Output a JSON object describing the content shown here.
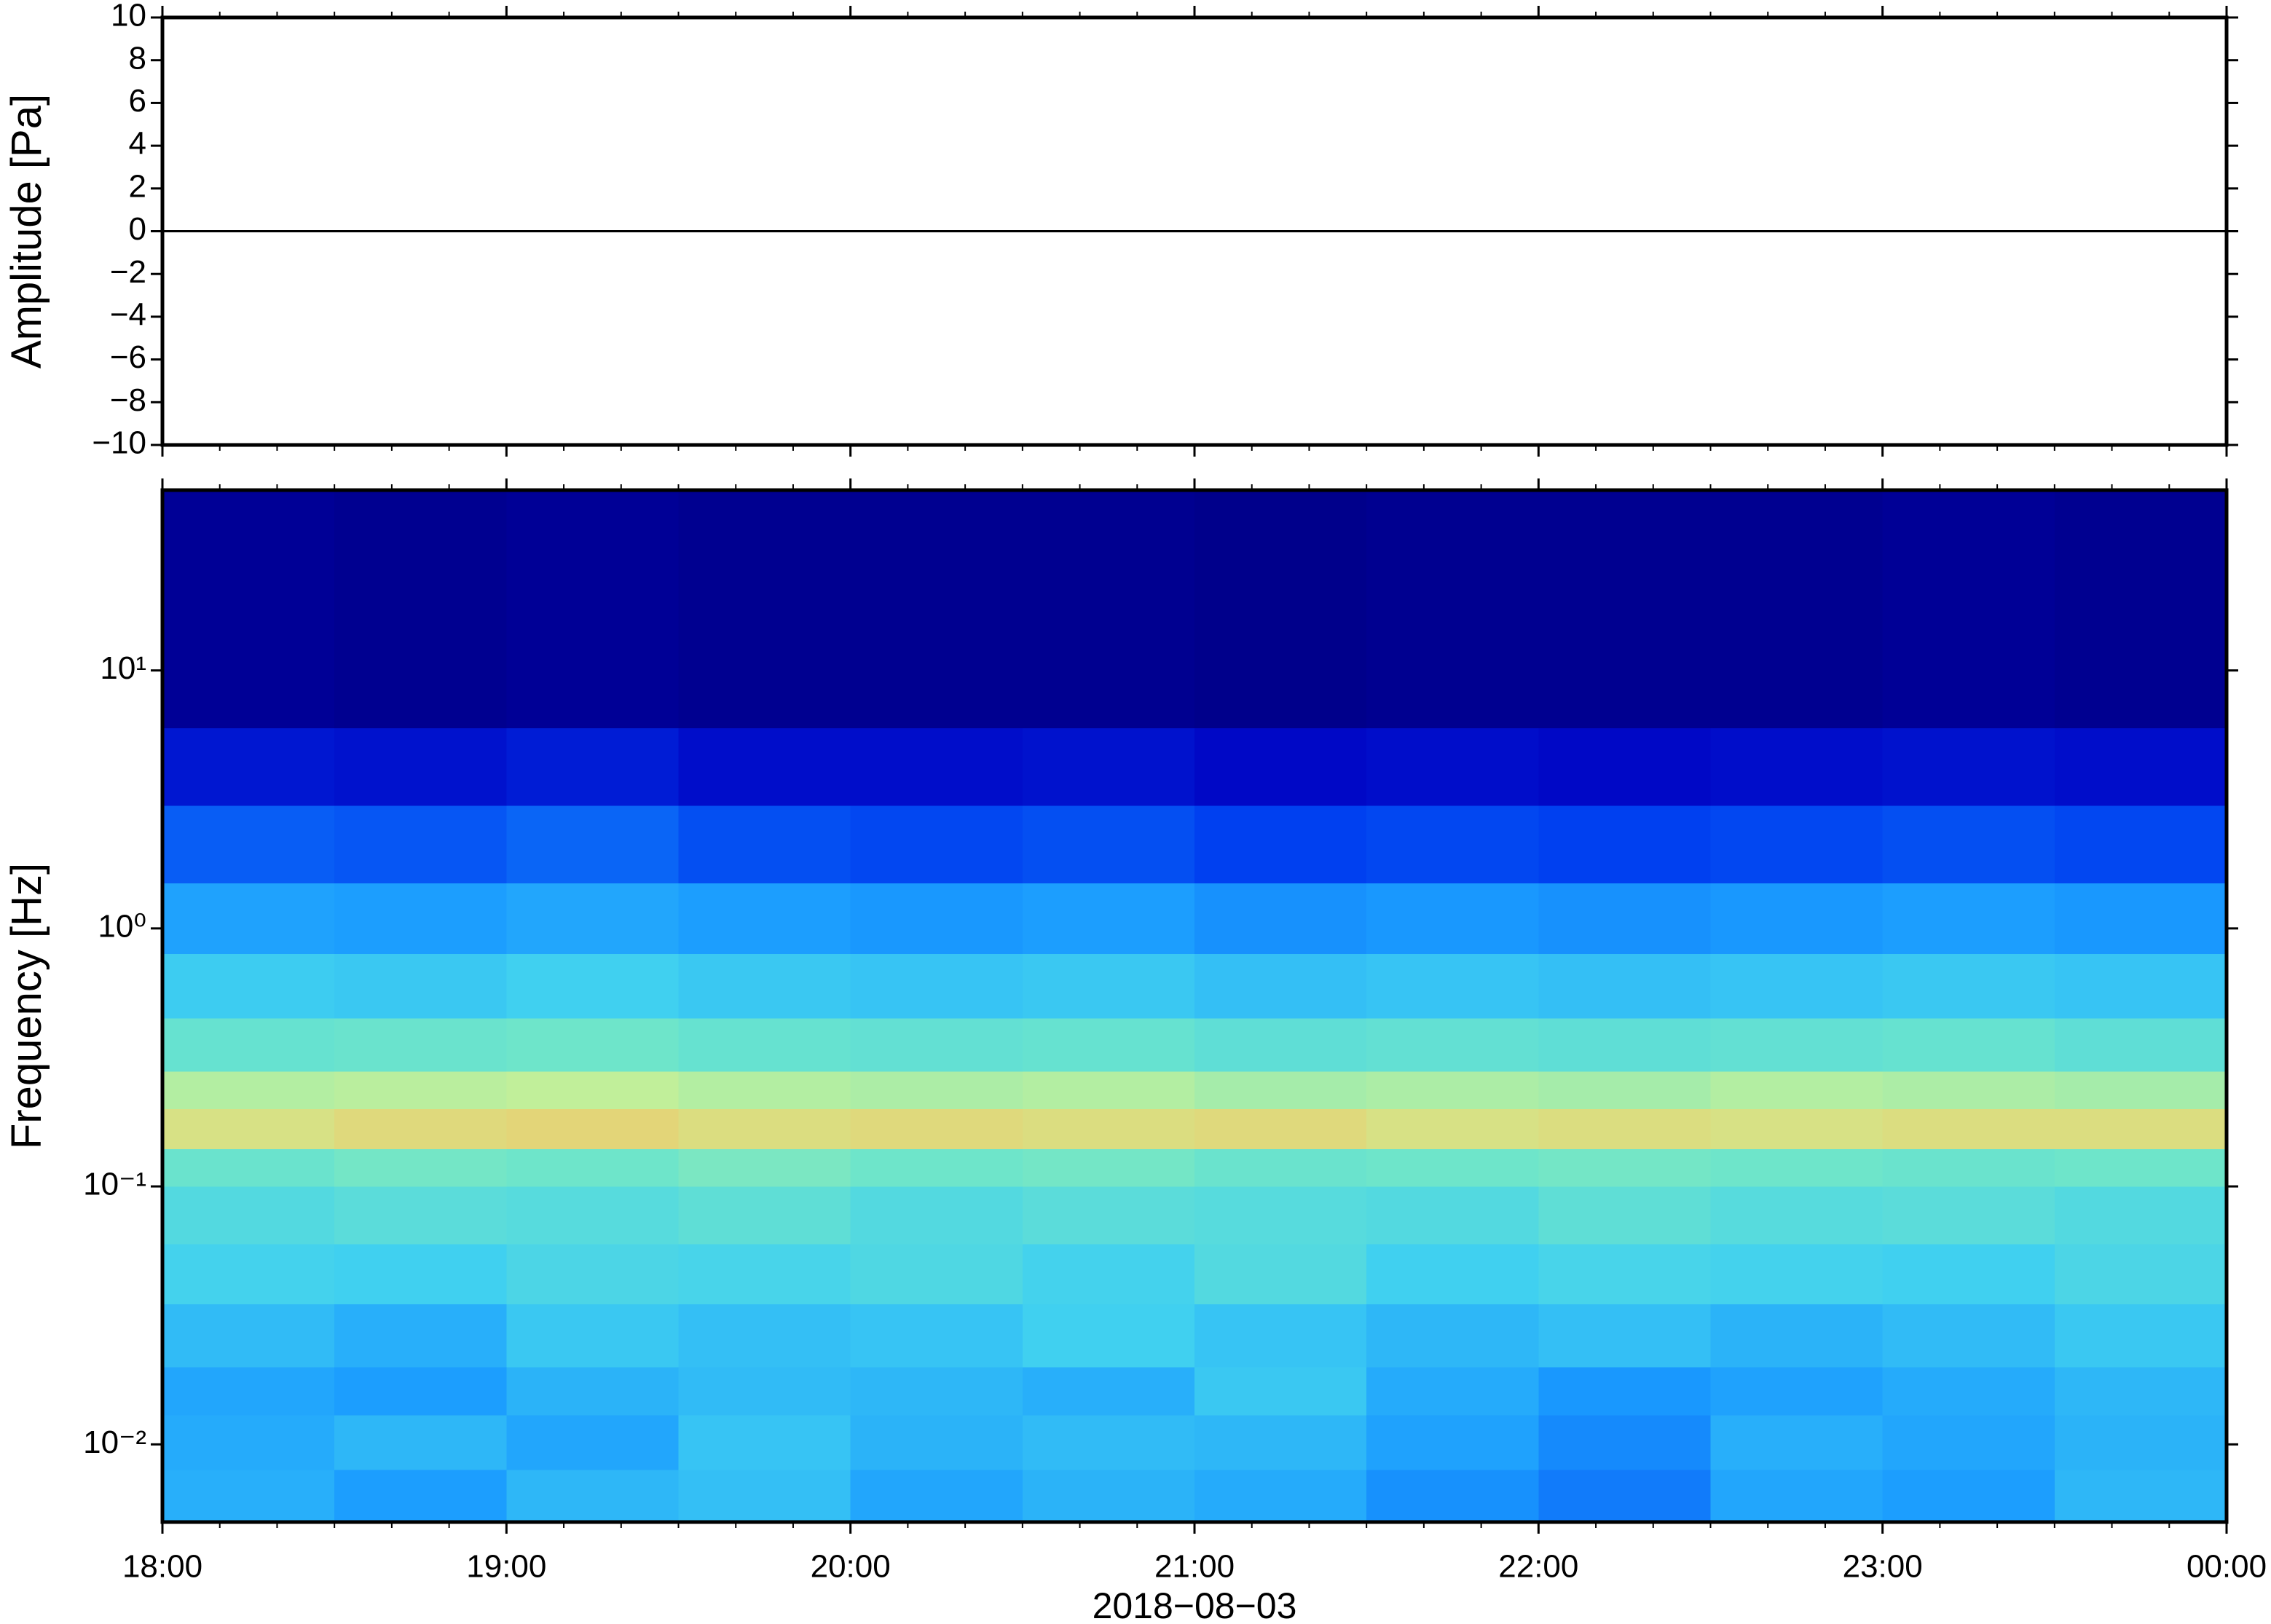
{
  "chart_data": [
    {
      "type": "line",
      "ylabel": "Amplitude [Pa]",
      "xlim": [
        18,
        24
      ],
      "xticks": [
        18,
        19,
        20,
        21,
        22,
        23,
        24
      ],
      "ylim": [
        -10,
        10
      ],
      "yticks": [
        {
          "value": -10,
          "label": "−10"
        },
        {
          "value": -8,
          "label": "−8"
        },
        {
          "value": -6,
          "label": "−6"
        },
        {
          "value": -4,
          "label": "−4"
        },
        {
          "value": -2,
          "label": "−2"
        },
        0,
        2,
        4,
        6,
        8,
        10
      ],
      "color": "#000000",
      "x": [
        18,
        18.5,
        19,
        19.5,
        20,
        20.5,
        21,
        21.5,
        22,
        22.5,
        23,
        23.5,
        24
      ],
      "values": [
        0,
        0,
        0,
        0,
        0,
        0,
        0,
        0,
        0,
        0,
        0,
        0,
        0
      ]
    },
    {
      "type": "heatmap",
      "ylabel": "Frequency [Hz]",
      "xlabel": "2018−08−03",
      "xlim": [
        18,
        24
      ],
      "xticks": [
        {
          "value": 18,
          "label": "18:00"
        },
        {
          "value": 19,
          "label": "19:00"
        },
        {
          "value": 20,
          "label": "20:00"
        },
        {
          "value": 21,
          "label": "21:00"
        },
        {
          "value": 22,
          "label": "22:00"
        },
        {
          "value": 23,
          "label": "23:00"
        },
        {
          "value": 24,
          "label": "00:00"
        }
      ],
      "ylim": [
        0.005,
        50
      ],
      "ylog": true,
      "yticks": [
        {
          "value": 0.01,
          "label": "10⁻²"
        },
        {
          "value": 0.1,
          "label": "10⁻¹"
        },
        {
          "value": 1,
          "label": "10⁰"
        },
        {
          "value": 10,
          "label": "10¹"
        }
      ],
      "zlim": [
        0,
        1
      ],
      "colormap": [
        "#00007a",
        "#0000c0",
        "#0040f0",
        "#1a9cff",
        "#40d0f0",
        "#70e6c8",
        "#c8f096",
        "#f8c060",
        "#e85030"
      ],
      "xbins": [
        18,
        18.5,
        19,
        19.5,
        20,
        20.5,
        21,
        21.5,
        22,
        22.5,
        23,
        23.5,
        24
      ],
      "ybins": [
        0.005,
        0.008,
        0.013,
        0.02,
        0.035,
        0.06,
        0.1,
        0.14,
        0.2,
        0.28,
        0.45,
        0.8,
        1.5,
        3,
        6,
        50
      ],
      "values": [
        [
          0.42,
          0.38,
          0.44,
          0.46,
          0.4,
          0.43,
          0.41,
          0.36,
          0.33,
          0.4,
          0.38,
          0.44
        ],
        [
          0.41,
          0.44,
          0.4,
          0.47,
          0.43,
          0.45,
          0.44,
          0.39,
          0.35,
          0.42,
          0.4,
          0.43
        ],
        [
          0.4,
          0.38,
          0.43,
          0.45,
          0.44,
          0.42,
          0.48,
          0.41,
          0.37,
          0.39,
          0.41,
          0.44
        ],
        [
          0.45,
          0.42,
          0.48,
          0.46,
          0.47,
          0.5,
          0.47,
          0.44,
          0.46,
          0.43,
          0.45,
          0.48
        ],
        [
          0.51,
          0.5,
          0.53,
          0.52,
          0.54,
          0.51,
          0.55,
          0.5,
          0.52,
          0.51,
          0.5,
          0.53
        ],
        [
          0.55,
          0.57,
          0.56,
          0.58,
          0.55,
          0.57,
          0.56,
          0.55,
          0.58,
          0.56,
          0.57,
          0.55
        ],
        [
          0.61,
          0.63,
          0.62,
          0.64,
          0.62,
          0.63,
          0.61,
          0.62,
          0.63,
          0.62,
          0.61,
          0.62
        ],
        [
          0.79,
          0.81,
          0.82,
          0.8,
          0.81,
          0.8,
          0.81,
          0.79,
          0.8,
          0.79,
          0.8,
          0.8
        ],
        [
          0.72,
          0.73,
          0.74,
          0.72,
          0.71,
          0.72,
          0.7,
          0.71,
          0.7,
          0.72,
          0.71,
          0.7
        ],
        [
          0.6,
          0.61,
          0.62,
          0.6,
          0.59,
          0.6,
          0.58,
          0.59,
          0.58,
          0.59,
          0.6,
          0.58
        ],
        [
          0.49,
          0.48,
          0.5,
          0.48,
          0.47,
          0.48,
          0.46,
          0.47,
          0.46,
          0.47,
          0.48,
          0.47
        ],
        [
          0.39,
          0.38,
          0.4,
          0.38,
          0.37,
          0.38,
          0.36,
          0.37,
          0.36,
          0.37,
          0.38,
          0.37
        ],
        [
          0.29,
          0.28,
          0.3,
          0.27,
          0.26,
          0.27,
          0.25,
          0.26,
          0.25,
          0.26,
          0.27,
          0.26
        ],
        [
          0.17,
          0.16,
          0.18,
          0.15,
          0.15,
          0.16,
          0.14,
          0.15,
          0.14,
          0.15,
          0.16,
          0.15
        ],
        [
          0.05,
          0.04,
          0.05,
          0.04,
          0.04,
          0.04,
          0.03,
          0.04,
          0.04,
          0.04,
          0.05,
          0.04
        ]
      ]
    }
  ]
}
